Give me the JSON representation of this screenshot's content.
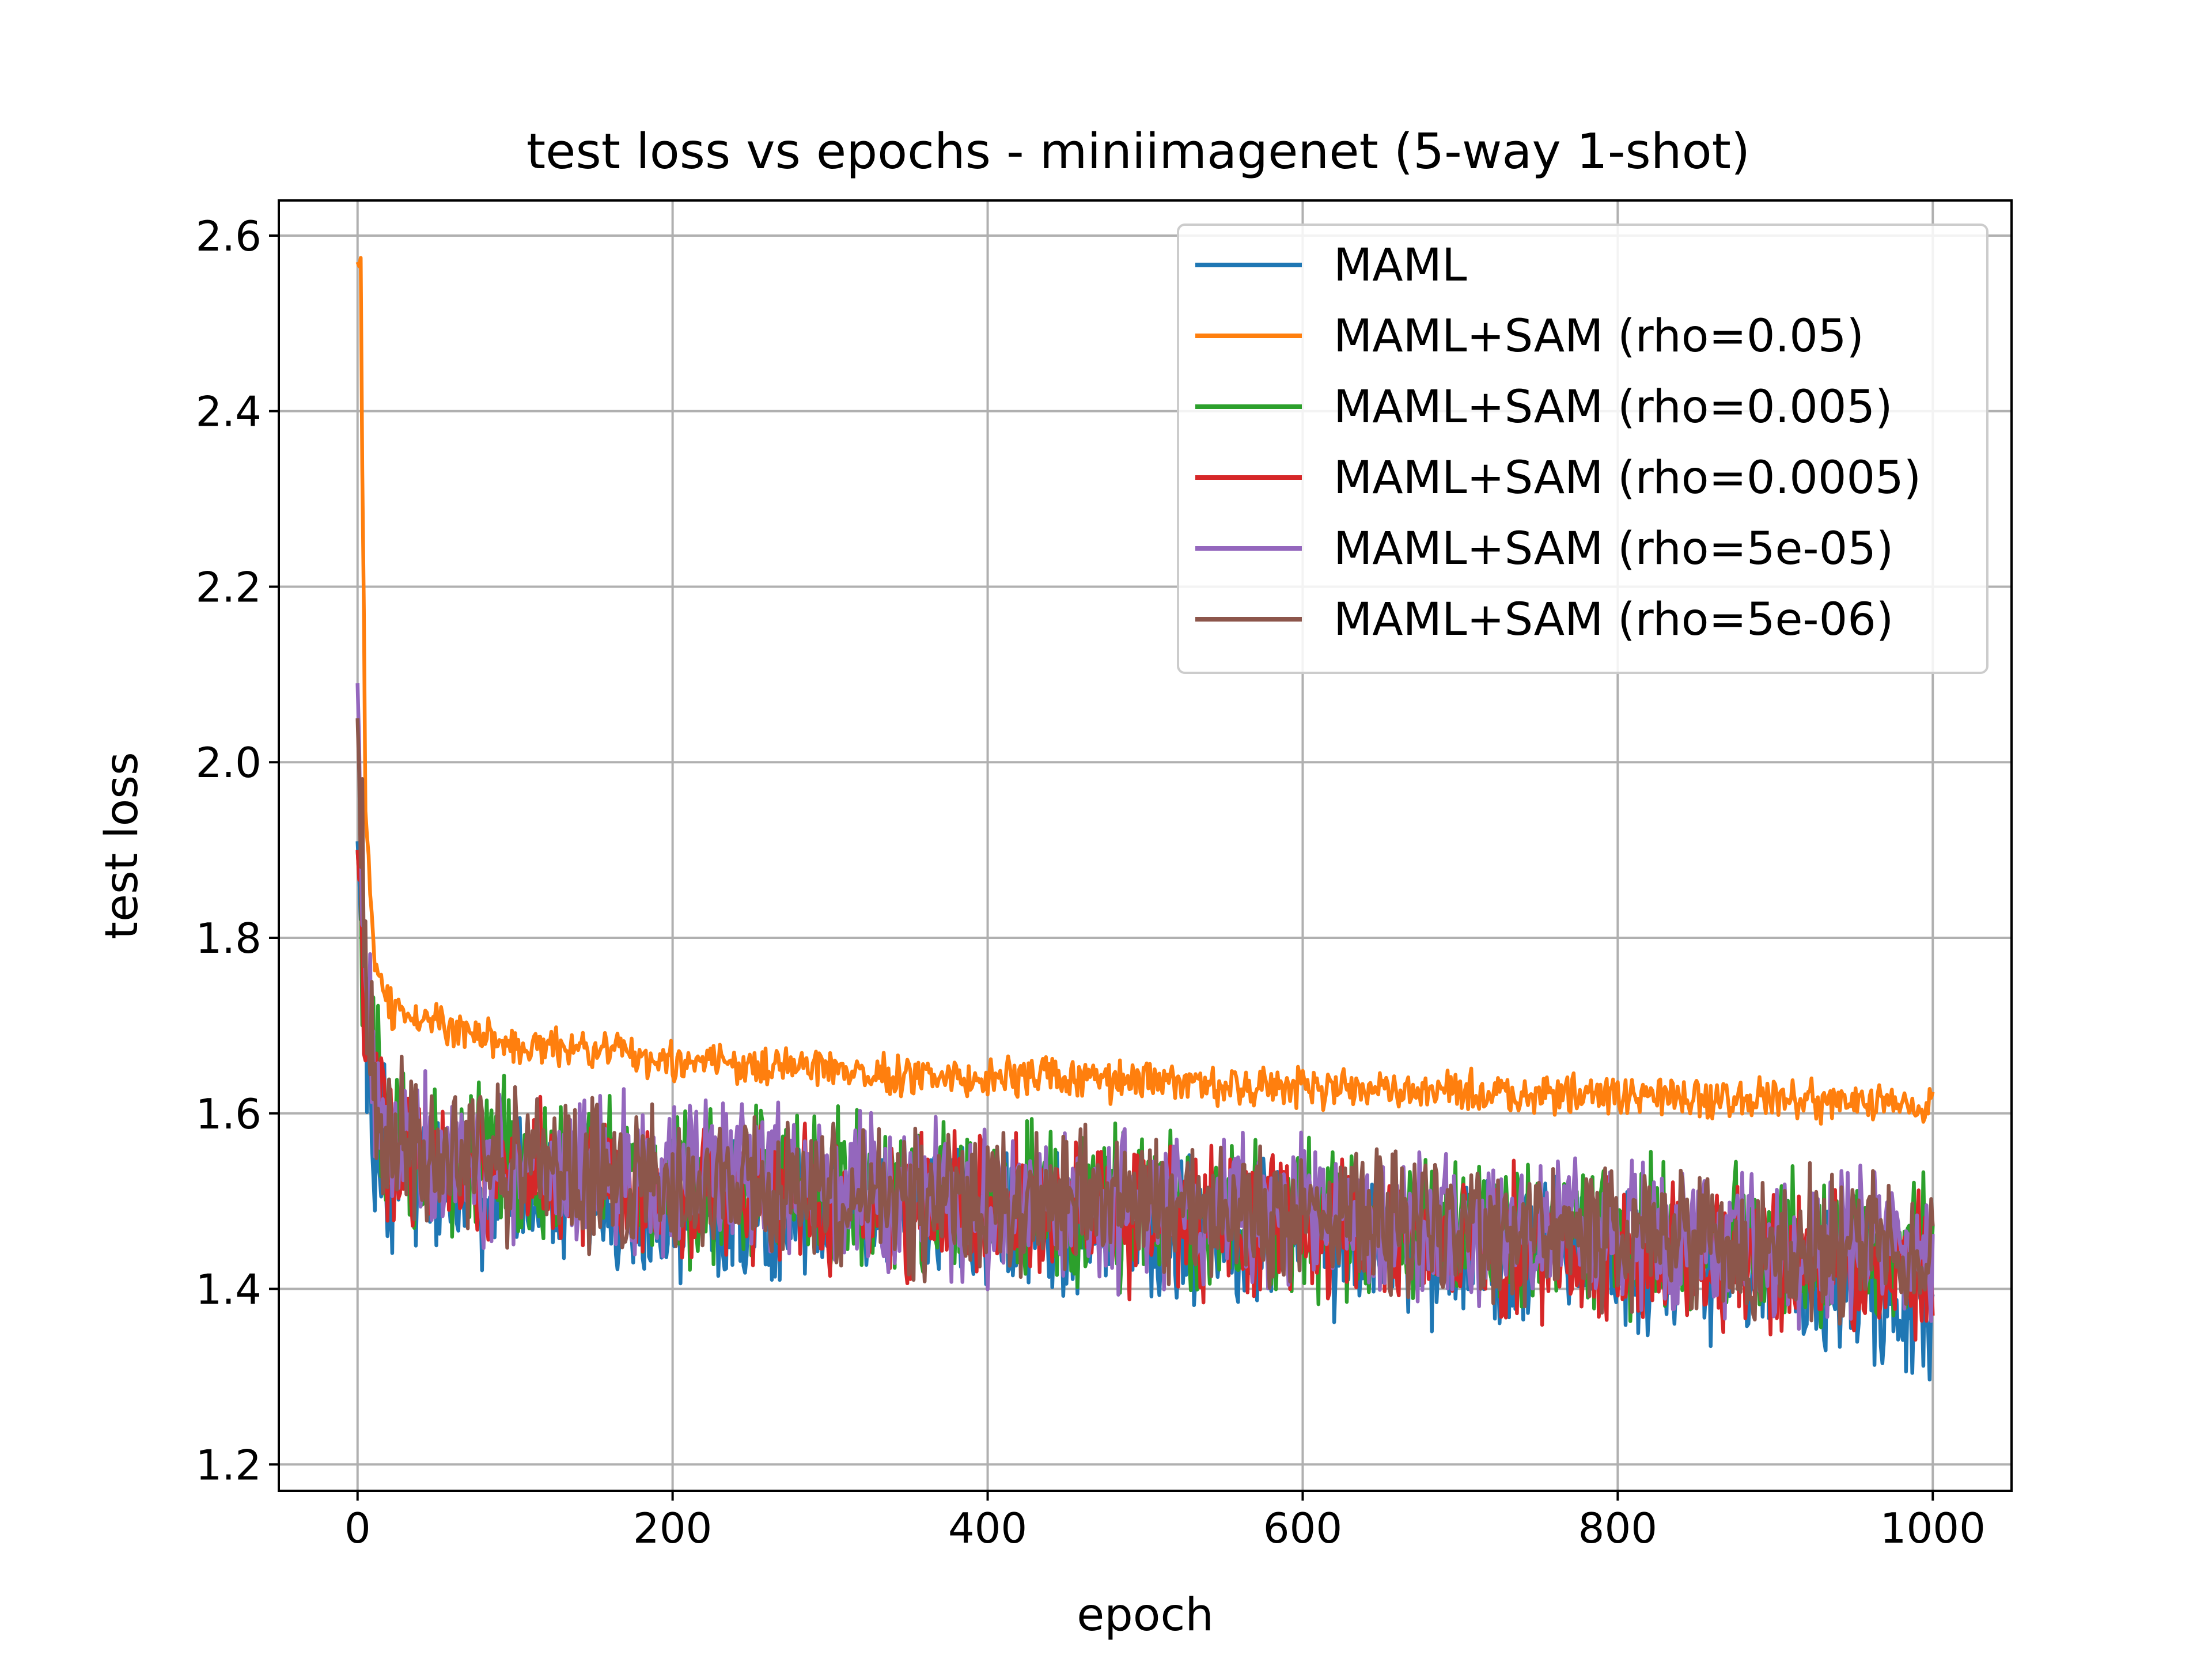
{
  "chart_data": {
    "type": "line",
    "title": "test loss vs epochs - miniimagenet (5-way 1-shot)",
    "xlabel": "epoch",
    "ylabel": "test loss",
    "xlim": [
      -50,
      1050
    ],
    "ylim": [
      1.17,
      2.64
    ],
    "xticks": [
      0,
      200,
      400,
      600,
      800,
      1000
    ],
    "yticks": [
      1.2,
      1.4,
      1.6,
      1.8,
      2.0,
      2.2,
      2.4,
      2.6
    ],
    "xtick_labels": [
      "0",
      "200",
      "400",
      "600",
      "800",
      "1000"
    ],
    "ytick_labels": [
      "1.2",
      "1.4",
      "1.6",
      "1.8",
      "2.0",
      "2.2",
      "2.4",
      "2.6"
    ],
    "grid": true,
    "legend_position": "top-right",
    "colors": [
      "#1f77b4",
      "#ff7f0e",
      "#2ca02c",
      "#d62728",
      "#9467bd",
      "#8c564b"
    ],
    "series": [
      {
        "name": "MAML",
        "color": "#1f77b4",
        "x": [
          0,
          5,
          10,
          20,
          50,
          100,
          200,
          300,
          400,
          500,
          600,
          700,
          800,
          900,
          1000
        ],
        "y": [
          1.91,
          1.72,
          1.6,
          1.55,
          1.52,
          1.51,
          1.5,
          1.49,
          1.48,
          1.47,
          1.46,
          1.45,
          1.43,
          1.42,
          1.38
        ]
      },
      {
        "name": "MAML+SAM (rho=0.05)",
        "color": "#ff7f0e",
        "x": [
          0,
          2,
          5,
          10,
          20,
          50,
          100,
          200,
          300,
          400,
          500,
          600,
          700,
          800,
          900,
          1000
        ],
        "y": [
          2.57,
          2.56,
          1.96,
          1.78,
          1.72,
          1.7,
          1.68,
          1.66,
          1.65,
          1.64,
          1.635,
          1.63,
          1.625,
          1.62,
          1.615,
          1.612
        ]
      },
      {
        "name": "MAML+SAM (rho=0.005)",
        "color": "#2ca02c",
        "x": [
          0,
          5,
          10,
          20,
          50,
          100,
          200,
          300,
          400,
          500,
          600,
          700,
          800,
          900,
          1000
        ],
        "y": [
          1.9,
          1.74,
          1.65,
          1.58,
          1.55,
          1.54,
          1.52,
          1.51,
          1.5,
          1.49,
          1.48,
          1.47,
          1.46,
          1.45,
          1.44
        ]
      },
      {
        "name": "MAML+SAM (rho=0.0005)",
        "color": "#d62728",
        "x": [
          0,
          5,
          10,
          20,
          50,
          100,
          200,
          300,
          400,
          500,
          600,
          700,
          800,
          900,
          1000
        ],
        "y": [
          1.9,
          1.73,
          1.63,
          1.57,
          1.54,
          1.53,
          1.51,
          1.5,
          1.49,
          1.48,
          1.47,
          1.46,
          1.44,
          1.43,
          1.42
        ]
      },
      {
        "name": "MAML+SAM (rho=5e-05)",
        "color": "#9467bd",
        "x": [
          0,
          5,
          10,
          20,
          50,
          100,
          200,
          300,
          400,
          500,
          600,
          700,
          800,
          900,
          1000
        ],
        "y": [
          2.09,
          1.75,
          1.64,
          1.58,
          1.55,
          1.54,
          1.53,
          1.51,
          1.5,
          1.49,
          1.48,
          1.47,
          1.46,
          1.45,
          1.45
        ]
      },
      {
        "name": "MAML+SAM (rho=5e-06)",
        "color": "#8c564b",
        "x": [
          0,
          5,
          10,
          20,
          50,
          100,
          200,
          300,
          400,
          500,
          600,
          700,
          800,
          900,
          1000
        ],
        "y": [
          2.05,
          1.74,
          1.63,
          1.57,
          1.55,
          1.54,
          1.52,
          1.51,
          1.5,
          1.49,
          1.48,
          1.47,
          1.46,
          1.45,
          1.44
        ]
      }
    ]
  }
}
